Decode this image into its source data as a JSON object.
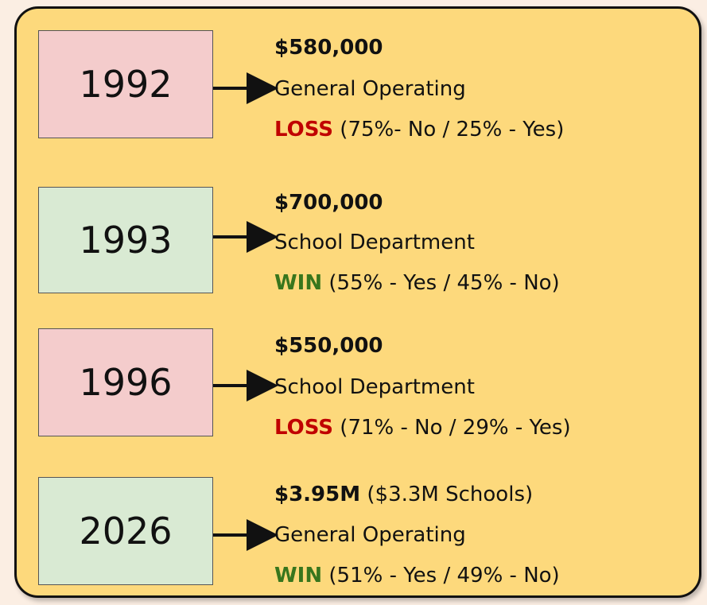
{
  "items": [
    {
      "year": "1992",
      "amount": "$580,000",
      "purpose": "General Operating",
      "result": "LOSS",
      "vote": "(75%- No / 25% - Yes)"
    },
    {
      "year": "1993",
      "amount": "$700,000",
      "purpose": "School Department",
      "result": "WIN",
      "vote": "(55% - Yes / 45% - No)"
    },
    {
      "year": "1996",
      "amount": "$550,000",
      "purpose": "School Department",
      "result": "LOSS",
      "vote": "(71% - No / 29% - Yes)"
    },
    {
      "year": "2026",
      "amount": "$3.95M",
      "amount_note": "($3.3M Schools)",
      "purpose": "General Operating",
      "result": "WIN",
      "vote": "(51% - Yes / 49% - No)"
    }
  ]
}
